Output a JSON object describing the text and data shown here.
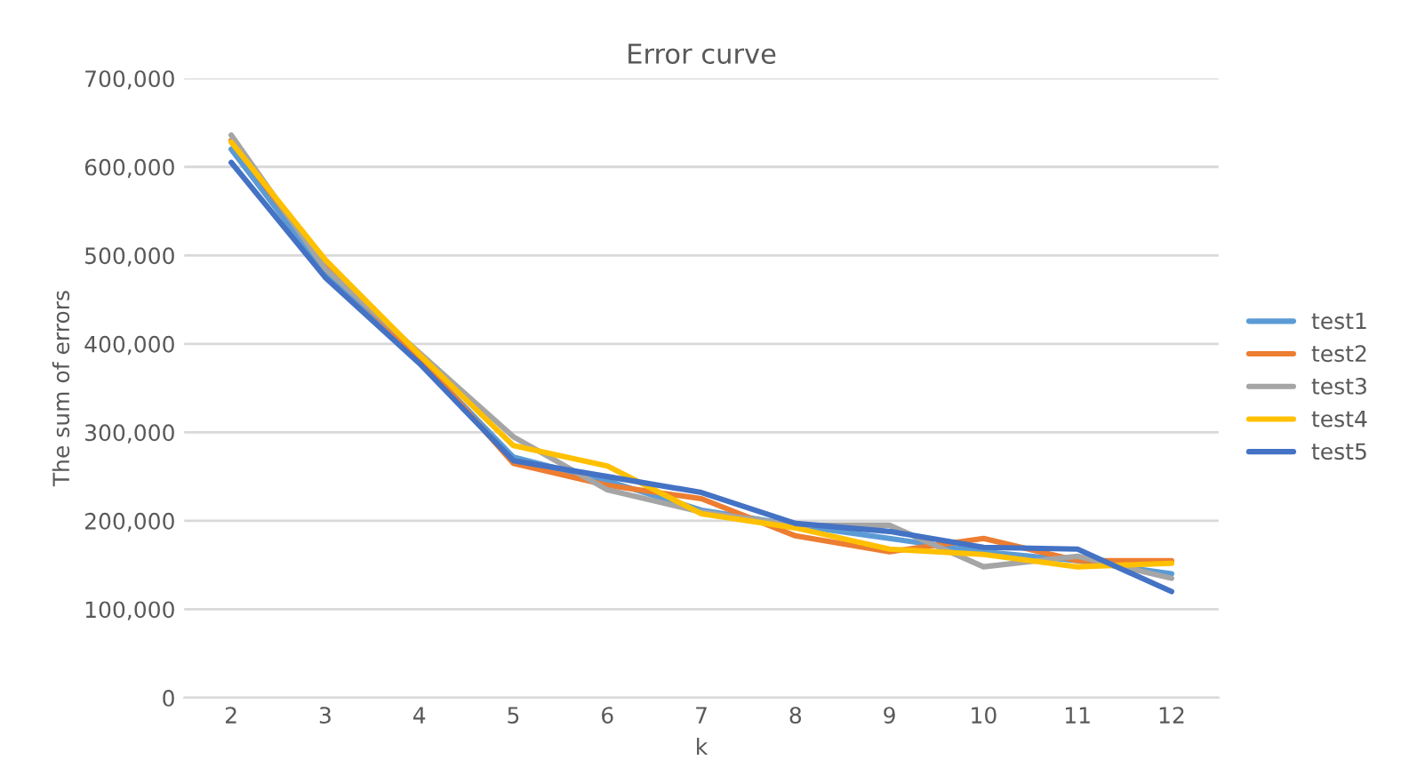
{
  "chart_data": {
    "type": "line",
    "title": "Error curve",
    "xlabel": "k",
    "ylabel": "The sum of errors",
    "categories": [
      "2",
      "3",
      "4",
      "5",
      "6",
      "7",
      "8",
      "9",
      "10",
      "11",
      "12"
    ],
    "series": [
      {
        "name": "test1",
        "color": "#5b9bd5",
        "values": [
          620000,
          480000,
          382000,
          272000,
          245000,
          212000,
          195000,
          180000,
          165000,
          155000,
          140000
        ]
      },
      {
        "name": "test2",
        "color": "#ed7d31",
        "values": [
          630000,
          488000,
          385000,
          265000,
          240000,
          225000,
          183000,
          165000,
          180000,
          155000,
          155000
        ]
      },
      {
        "name": "test3",
        "color": "#a5a5a5",
        "values": [
          636000,
          485000,
          390000,
          295000,
          235000,
          210000,
          195000,
          195000,
          148000,
          160000,
          135000
        ]
      },
      {
        "name": "test4",
        "color": "#ffc000",
        "values": [
          628000,
          495000,
          388000,
          285000,
          262000,
          208000,
          192000,
          168000,
          162000,
          148000,
          152000
        ]
      },
      {
        "name": "test5",
        "color": "#4472c4",
        "values": [
          605000,
          475000,
          378000,
          268000,
          250000,
          232000,
          197000,
          188000,
          170000,
          168000,
          120000
        ]
      }
    ],
    "ylim": [
      0,
      700000
    ],
    "yticks": [
      0,
      {
        "value": 100000,
        "label": "100,000"
      },
      {
        "value": 200000,
        "label": "200,000"
      },
      {
        "value": 300000,
        "label": "300,000"
      },
      {
        "value": 400000,
        "label": "400,000"
      },
      {
        "value": 500000,
        "label": "500,000"
      },
      {
        "value": 600000,
        "label": "600,000"
      },
      {
        "value": 700000,
        "label": "700,000"
      }
    ],
    "grid": "y",
    "legend": "right",
    "marker": "none",
    "line_style": "solid"
  }
}
